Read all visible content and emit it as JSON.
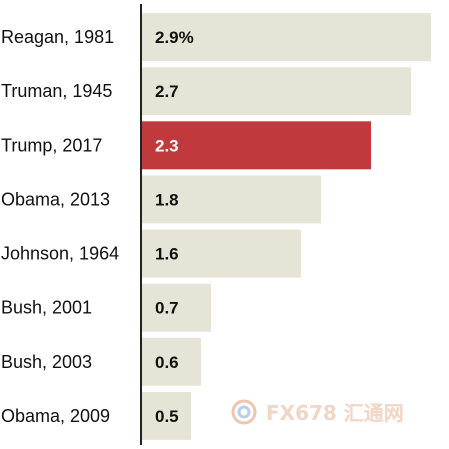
{
  "chart_data": {
    "type": "bar",
    "orientation": "horizontal",
    "categories": [
      "Reagan, 1981",
      "Truman, 1945",
      "Trump, 2017",
      "Obama, 2013",
      "Johnson, 1964",
      "Bush, 2001",
      "Bush, 2003",
      "Obama, 2009"
    ],
    "values": [
      2.9,
      2.7,
      2.3,
      1.8,
      1.6,
      0.7,
      0.6,
      0.5
    ],
    "value_labels": [
      "2.9%",
      "2.7",
      "2.3",
      "1.8",
      "1.6",
      "0.7",
      "0.6",
      "0.5"
    ],
    "highlight_index": 2,
    "xlim": [
      0,
      3.08
    ],
    "grid": false,
    "colors": {
      "bar": "#e6e4d6",
      "highlight": "#c0393d",
      "axis": "#222222",
      "label_dark": "#111111",
      "label_light": "#ffffff"
    }
  },
  "watermark": {
    "text": "FX678 汇通网",
    "icon": "spiral-logo-icon"
  }
}
